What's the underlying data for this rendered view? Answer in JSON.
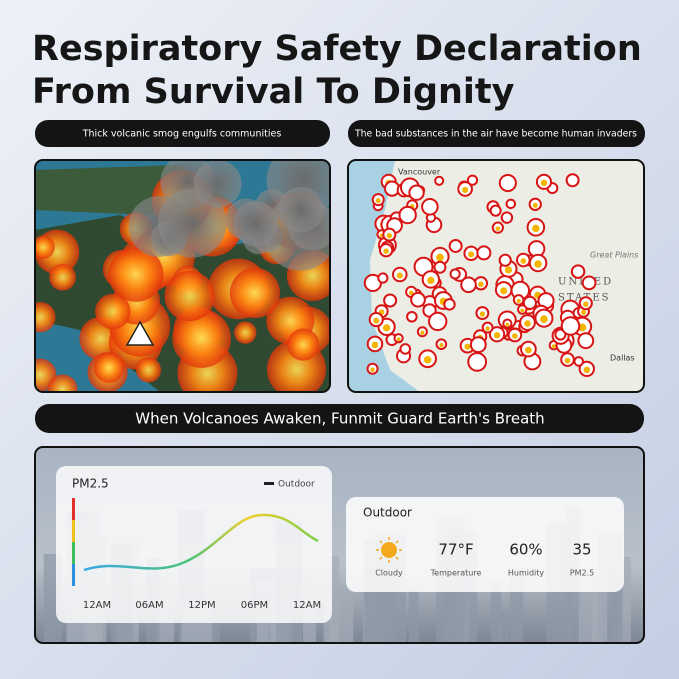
{
  "header": {
    "title_lines": [
      "Respiratory Safety Declaration",
      "From Survival To Dignity"
    ]
  },
  "panels": {
    "left": {
      "caption": "Thick volcanic smog engulfs communities"
    },
    "right": {
      "caption": "The bad substances in the air have become human invaders",
      "map_labels": [
        "Vancouver",
        "Great Plains",
        "UNITED",
        "STATES",
        "Dallas"
      ]
    }
  },
  "banner": "When Volcanoes Awaken, Funmit Guard Earth's Breath",
  "pm_card": {
    "title": "PM2.5",
    "legend": "Outdoor",
    "x_labels": [
      "12AM",
      "06AM",
      "12PM",
      "06PM",
      "12AM"
    ]
  },
  "weather_card": {
    "title": "Outdoor",
    "items": [
      {
        "label": "Cloudy"
      },
      {
        "value": "77°F",
        "label": "Temperature"
      },
      {
        "value": "60%",
        "label": "Humidity"
      },
      {
        "value": "35",
        "label": "PM2.5"
      }
    ]
  }
}
